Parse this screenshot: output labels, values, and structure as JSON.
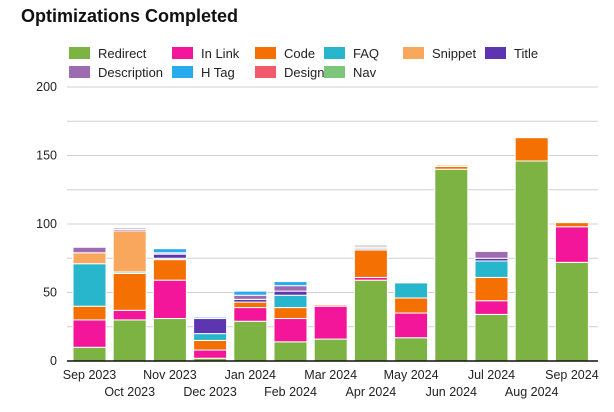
{
  "chart_data": {
    "type": "bar",
    "stacked": true,
    "title": "Optimizations Completed",
    "xlabel": "",
    "ylabel": "",
    "ylim": [
      0,
      200
    ],
    "yticks": [
      0,
      50,
      100,
      150,
      200
    ],
    "grid": true,
    "legend_position": "top",
    "categories": [
      "Sep 2023",
      "Oct 2023",
      "Nov 2023",
      "Dec 2023",
      "Jan 2024",
      "Feb 2024",
      "Mar 2024",
      "Apr 2024",
      "May 2024",
      "Jun 2024",
      "Jul 2024",
      "Aug 2024",
      "Sep 2024"
    ],
    "series": [
      {
        "name": "Redirect",
        "color": "#7cb342",
        "values": [
          10,
          30,
          31,
          2,
          29,
          14,
          16,
          59,
          17,
          140,
          34,
          146,
          72
        ]
      },
      {
        "name": "In Link",
        "color": "#f4169a",
        "values": [
          20,
          7,
          28,
          6,
          10,
          17,
          24,
          2,
          18,
          0,
          10,
          0,
          26
        ]
      },
      {
        "name": "Code",
        "color": "#f57002",
        "values": [
          10,
          27,
          15,
          7,
          4,
          8,
          1,
          20,
          11,
          2,
          17,
          17,
          3
        ]
      },
      {
        "name": "FAQ",
        "color": "#27b6cc",
        "values": [
          31,
          1,
          1,
          5,
          0,
          9,
          0,
          0,
          11,
          0,
          12,
          0,
          0
        ]
      },
      {
        "name": "Snippet",
        "color": "#f9a75d",
        "values": [
          8,
          30,
          0,
          0,
          0,
          0,
          0,
          0,
          0,
          1,
          0,
          0,
          0
        ]
      },
      {
        "name": "Title",
        "color": "#5e35b1",
        "values": [
          0,
          1,
          3,
          11,
          2,
          3,
          0,
          0,
          0,
          0,
          2,
          0,
          0
        ]
      },
      {
        "name": "Description",
        "color": "#9c6bb0",
        "values": [
          4,
          1,
          1,
          0,
          3,
          4,
          0,
          1,
          0,
          0,
          5,
          0,
          0
        ]
      },
      {
        "name": "H Tag",
        "color": "#29abf0",
        "values": [
          0,
          0,
          3,
          1,
          3,
          3,
          0,
          1,
          0,
          0,
          0,
          0,
          0
        ]
      },
      {
        "name": "Design",
        "color": "#f05a6a",
        "values": [
          0,
          0,
          0,
          0,
          0,
          0,
          0,
          1,
          0,
          0,
          0,
          0,
          0
        ]
      },
      {
        "name": "Nav",
        "color": "#7dc57a",
        "values": [
          0,
          0,
          0,
          0,
          0,
          0,
          0,
          1,
          0,
          0,
          0,
          0,
          0
        ]
      }
    ]
  }
}
